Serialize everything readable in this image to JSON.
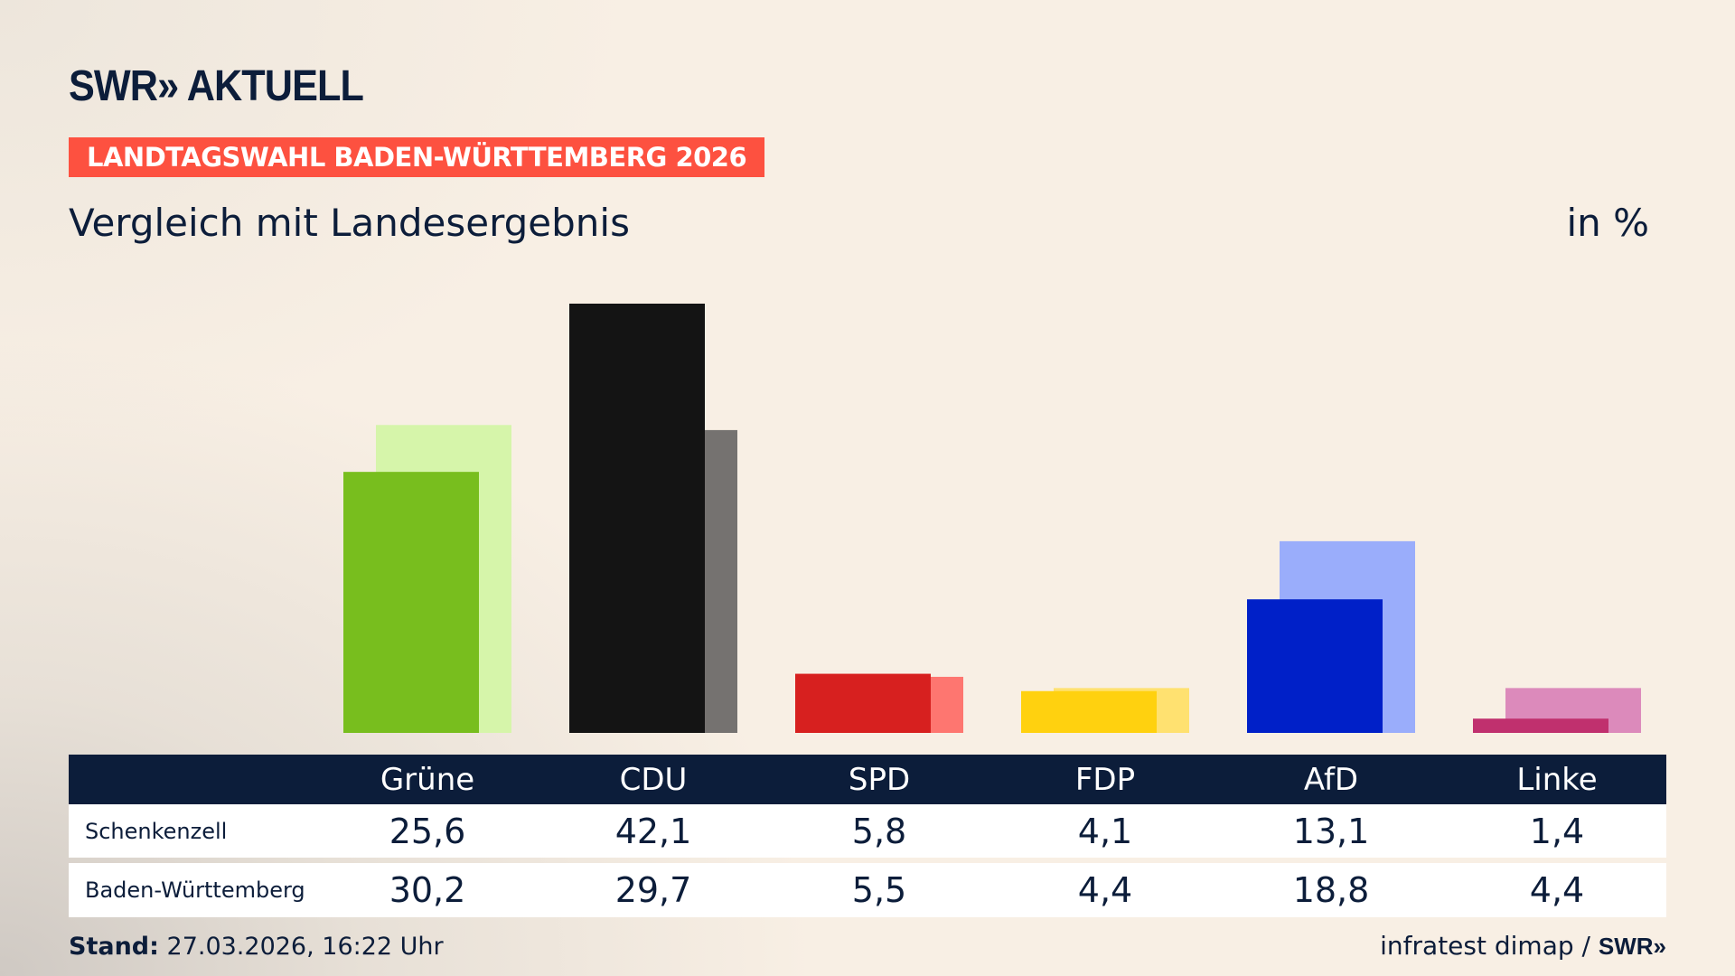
{
  "header": {
    "logo": "SWR» AKTUELL",
    "banner": "LANDTAGSWAHL BADEN-WÜRTTEMBERG 2026",
    "subtitle": "Vergleich mit Landesergebnis",
    "unit": "in %"
  },
  "chart_data": {
    "type": "bar",
    "title": "Vergleich mit Landesergebnis",
    "ylabel": "in %",
    "categories": [
      "Grüne",
      "CDU",
      "SPD",
      "FDP",
      "AfD",
      "Linke"
    ],
    "ylim": [
      0,
      42.1
    ],
    "grid": false,
    "series": [
      {
        "name": "Schenkenzell",
        "values": [
          25.6,
          42.1,
          5.8,
          4.1,
          13.1,
          1.4
        ],
        "labels": [
          "25,6",
          "42,1",
          "5,8",
          "4,1",
          "13,1",
          "1,4"
        ]
      },
      {
        "name": "Baden-Württemberg",
        "values": [
          30.2,
          29.7,
          5.5,
          4.4,
          18.8,
          4.4
        ],
        "labels": [
          "30,2",
          "29,7",
          "5,5",
          "4,4",
          "18,8",
          "4,4"
        ]
      }
    ],
    "colors": {
      "primary": [
        "#78be1e",
        "#141414",
        "#d7201f",
        "#ffd10f",
        "#0020c8",
        "#c0306e"
      ],
      "secondary": [
        "#d6f5aa",
        "#757270",
        "#fe7670",
        "#ffe170",
        "#9aadfb",
        "#dc8abb"
      ]
    }
  },
  "footer": {
    "stand_label": "Stand:",
    "stand_value": "27.03.2026, 16:22 Uhr",
    "source": "infratest dimap /",
    "source_logo": "SWR»"
  }
}
